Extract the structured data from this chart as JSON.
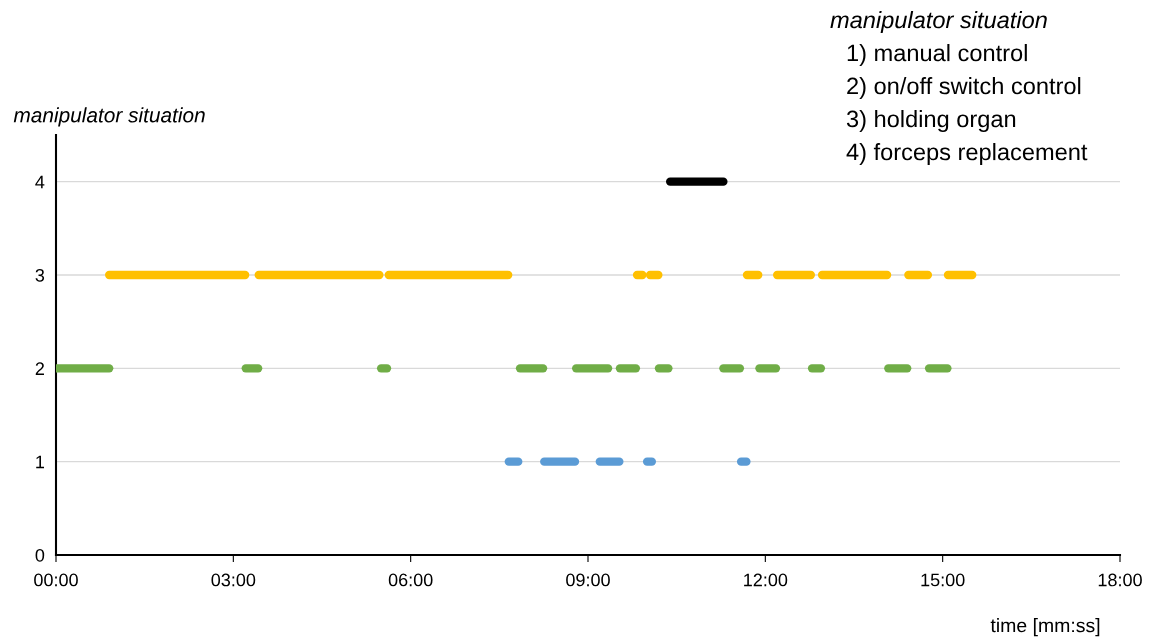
{
  "chart_data": {
    "type": "line",
    "ylabel": "manipulator situation",
    "xlabel": "time [mm:ss]",
    "annotations": [
      "manipulator situation",
      "1) manual control",
      "2) on/off switch control",
      "3) holding organ",
      "4) forceps replacement"
    ],
    "series": [
      {
        "color": "#000000",
        "x": [
          10.39,
          11.29
        ],
        "values": [
          4,
          4
        ]
      },
      {
        "color": "#ffc000",
        "x": [
          0.9,
          3.2
        ],
        "values": [
          3,
          3
        ]
      },
      {
        "color": "#ffc000",
        "x": [
          3.43,
          5.47
        ],
        "values": [
          3,
          3
        ]
      },
      {
        "color": "#ffc000",
        "x": [
          5.63,
          7.65
        ],
        "values": [
          3,
          3
        ]
      },
      {
        "color": "#ffc000",
        "x": [
          9.83,
          9.92
        ],
        "values": [
          3,
          3
        ]
      },
      {
        "color": "#ffc000",
        "x": [
          10.05,
          10.19
        ],
        "values": [
          3,
          3
        ]
      },
      {
        "color": "#ffc000",
        "x": [
          11.69,
          11.88
        ],
        "values": [
          3,
          3
        ]
      },
      {
        "color": "#ffc000",
        "x": [
          12.2,
          12.77
        ],
        "values": [
          3,
          3
        ]
      },
      {
        "color": "#ffc000",
        "x": [
          12.96,
          14.06
        ],
        "values": [
          3,
          3
        ]
      },
      {
        "color": "#ffc000",
        "x": [
          14.42,
          14.75
        ],
        "values": [
          3,
          3
        ]
      },
      {
        "color": "#ffc000",
        "x": [
          15.09,
          15.5
        ],
        "values": [
          3,
          3
        ]
      },
      {
        "color": "#70ad47",
        "x": [
          0,
          0.9
        ],
        "values": [
          2,
          2
        ]
      },
      {
        "color": "#70ad47",
        "x": [
          3.21,
          3.42
        ],
        "values": [
          2,
          2
        ]
      },
      {
        "color": "#70ad47",
        "x": [
          5.5,
          5.6
        ],
        "values": [
          2,
          2
        ]
      },
      {
        "color": "#70ad47",
        "x": [
          7.85,
          8.24
        ],
        "values": [
          2,
          2
        ]
      },
      {
        "color": "#70ad47",
        "x": [
          8.8,
          9.34
        ],
        "values": [
          2,
          2
        ]
      },
      {
        "color": "#70ad47",
        "x": [
          9.54,
          9.81
        ],
        "values": [
          2,
          2
        ]
      },
      {
        "color": "#70ad47",
        "x": [
          10.2,
          10.36
        ],
        "values": [
          2,
          2
        ]
      },
      {
        "color": "#70ad47",
        "x": [
          11.29,
          11.57
        ],
        "values": [
          2,
          2
        ]
      },
      {
        "color": "#70ad47",
        "x": [
          11.9,
          12.18
        ],
        "values": [
          2,
          2
        ]
      },
      {
        "color": "#70ad47",
        "x": [
          12.79,
          12.94
        ],
        "values": [
          2,
          2
        ]
      },
      {
        "color": "#70ad47",
        "x": [
          14.08,
          14.4
        ],
        "values": [
          2,
          2
        ]
      },
      {
        "color": "#70ad47",
        "x": [
          14.77,
          15.08
        ],
        "values": [
          2,
          2
        ]
      },
      {
        "color": "#5b9bd5",
        "x": [
          7.66,
          7.82
        ],
        "values": [
          1,
          1
        ]
      },
      {
        "color": "#5b9bd5",
        "x": [
          8.26,
          8.78
        ],
        "values": [
          1,
          1
        ]
      },
      {
        "color": "#5b9bd5",
        "x": [
          9.2,
          9.53
        ],
        "values": [
          1,
          1
        ]
      },
      {
        "color": "#5b9bd5",
        "x": [
          10.0,
          10.08
        ],
        "values": [
          1,
          1
        ]
      },
      {
        "color": "#5b9bd5",
        "x": [
          11.59,
          11.68
        ],
        "values": [
          1,
          1
        ]
      }
    ],
    "xlim": [
      0,
      18
    ],
    "xticks": [
      {
        "value": 0,
        "label": "00:00"
      },
      {
        "value": 3,
        "label": "03:00"
      },
      {
        "value": 6,
        "label": "06:00"
      },
      {
        "value": 9,
        "label": "09:00"
      },
      {
        "value": 12,
        "label": "12:00"
      },
      {
        "value": 15,
        "label": "15:00"
      },
      {
        "value": 18,
        "label": "18:00"
      }
    ],
    "ylim": [
      0,
      4.5
    ],
    "yticks": [
      0,
      1,
      2,
      3,
      4
    ],
    "grid": "y",
    "legend": false,
    "marker": "none",
    "line_style": "solid"
  }
}
